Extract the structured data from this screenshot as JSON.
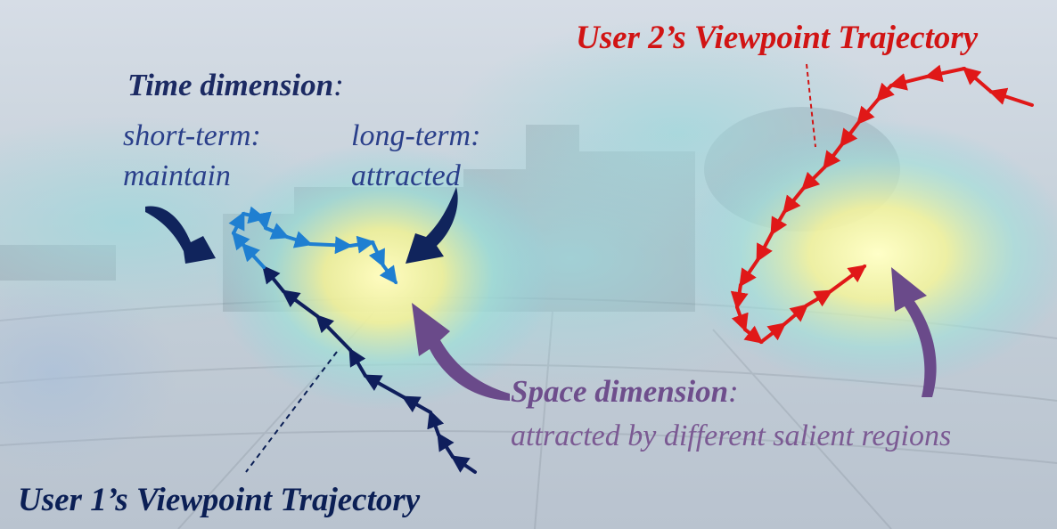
{
  "labels": {
    "user2_trajectory": "User 2’s Viewpoint Trajectory",
    "user1_trajectory": "User 1’s Viewpoint Trajectory",
    "time_dimension": "Time dimension",
    "time_colon": ":",
    "short_term": "short-term:",
    "short_term_value": "maintain",
    "long_term": "long-term:",
    "long_term_value": "attracted",
    "space_dimension": "Space dimension",
    "space_colon": ":",
    "space_value": "attracted by different salient regions"
  },
  "colors": {
    "user1": "#0f1e5c",
    "user1_short": "#1f7fd1",
    "user2": "#e01818",
    "time_arrows": "#10245c",
    "space_arrows": "#6a4a8a",
    "saliency_core": "#ffffc0",
    "saliency_halo": "#8fd6e0"
  },
  "icons": [
    "curved-arrow-icon"
  ]
}
